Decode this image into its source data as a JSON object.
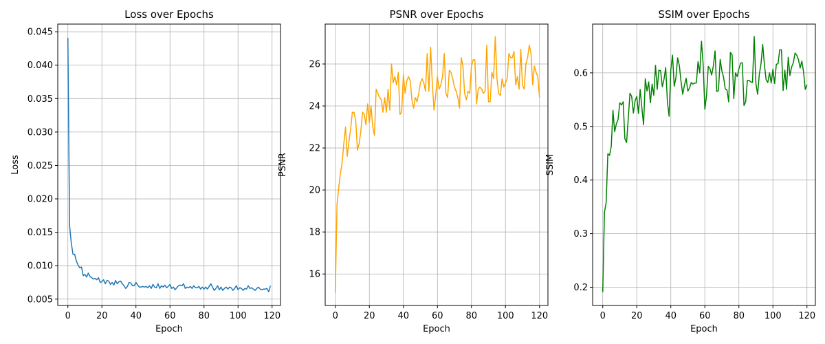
{
  "chart_data": [
    {
      "type": "line",
      "title": "Loss over Epochs",
      "xlabel": "Epoch",
      "ylabel": "Loss",
      "xlim": [
        -5.95,
        124.95
      ],
      "ylim": [
        0.00405,
        0.04615
      ],
      "grid": true,
      "color": "#1f77b4",
      "x_ticks": [
        0,
        20,
        40,
        60,
        80,
        100,
        120
      ],
      "x_tick_labels": [
        "0",
        "20",
        "40",
        "60",
        "80",
        "100",
        "120"
      ],
      "y_ticks": [
        0.005,
        0.01,
        0.015,
        0.02,
        0.025,
        0.03,
        0.035,
        0.04,
        0.045
      ],
      "y_tick_labels": [
        "0.005",
        "0.010",
        "0.015",
        "0.020",
        "0.025",
        "0.030",
        "0.035",
        "0.040",
        "0.045"
      ],
      "x_start": 0,
      "values": [
        0.0441,
        0.016,
        0.0134,
        0.0117,
        0.0117,
        0.0107,
        0.0101,
        0.0097,
        0.0098,
        0.0085,
        0.0087,
        0.0083,
        0.0089,
        0.0084,
        0.0082,
        0.008,
        0.0081,
        0.0079,
        0.0082,
        0.0075,
        0.0076,
        0.0079,
        0.0073,
        0.0078,
        0.0077,
        0.0072,
        0.0075,
        0.0071,
        0.0078,
        0.0073,
        0.0076,
        0.0077,
        0.0073,
        0.007,
        0.0066,
        0.0069,
        0.0075,
        0.0074,
        0.007,
        0.007,
        0.0075,
        0.0071,
        0.0068,
        0.0068,
        0.0069,
        0.0068,
        0.0069,
        0.0067,
        0.007,
        0.0066,
        0.0072,
        0.0068,
        0.0067,
        0.0073,
        0.0066,
        0.007,
        0.0068,
        0.0071,
        0.0067,
        0.0069,
        0.0072,
        0.0066,
        0.0068,
        0.0064,
        0.0067,
        0.007,
        0.0071,
        0.007,
        0.0073,
        0.0066,
        0.0068,
        0.0067,
        0.0069,
        0.0066,
        0.007,
        0.0067,
        0.0067,
        0.0069,
        0.0065,
        0.0068,
        0.0065,
        0.0068,
        0.0065,
        0.0069,
        0.0073,
        0.0068,
        0.0063,
        0.0066,
        0.007,
        0.0064,
        0.0068,
        0.0063,
        0.0066,
        0.0068,
        0.0065,
        0.0068,
        0.0067,
        0.0063,
        0.0066,
        0.007,
        0.0064,
        0.0067,
        0.0066,
        0.0063,
        0.0066,
        0.0065,
        0.007,
        0.0066,
        0.0067,
        0.0065,
        0.0063,
        0.0066,
        0.0068,
        0.0065,
        0.0064,
        0.0065,
        0.0065,
        0.0066,
        0.0061,
        0.007
      ]
    },
    {
      "type": "line",
      "title": "PSNR over Epochs",
      "xlabel": "Epoch",
      "ylabel": "PSNR",
      "xlim": [
        -5.95,
        124.95
      ],
      "ylim": [
        14.5,
        27.9
      ],
      "grid": true,
      "color": "#ffa500",
      "x_ticks": [
        0,
        20,
        40,
        60,
        80,
        100,
        120
      ],
      "x_tick_labels": [
        "0",
        "20",
        "40",
        "60",
        "80",
        "100",
        "120"
      ],
      "y_ticks": [
        16,
        18,
        20,
        22,
        24,
        26
      ],
      "y_tick_labels": [
        "16",
        "18",
        "20",
        "22",
        "24",
        "26"
      ],
      "x_start": 0,
      "values": [
        15.1,
        19.3,
        20.1,
        20.8,
        21.3,
        22.2,
        23.0,
        21.6,
        22.3,
        22.9,
        23.7,
        23.7,
        23.3,
        21.9,
        22.2,
        22.8,
        23.7,
        23.6,
        23.1,
        24.1,
        23.2,
        24.0,
        23.0,
        22.6,
        24.8,
        24.6,
        24.4,
        24.3,
        23.7,
        24.4,
        23.7,
        24.8,
        23.8,
        26.0,
        25.1,
        25.4,
        25.0,
        25.6,
        23.6,
        23.7,
        25.5,
        24.6,
        25.2,
        25.4,
        25.2,
        24.3,
        23.9,
        24.4,
        24.2,
        24.6,
        25.1,
        25.3,
        25.1,
        24.7,
        26.5,
        24.7,
        26.8,
        25.1,
        23.8,
        24.5,
        25.4,
        24.8,
        25.0,
        25.4,
        26.5,
        24.6,
        24.4,
        25.7,
        25.6,
        25.3,
        24.9,
        24.7,
        24.4,
        23.9,
        26.3,
        25.9,
        24.6,
        24.3,
        24.7,
        24.6,
        25.9,
        26.2,
        26.2,
        24.1,
        24.8,
        24.9,
        24.8,
        24.6,
        24.7,
        26.9,
        24.2,
        24.2,
        25.6,
        25.3,
        27.3,
        25.3,
        24.6,
        24.5,
        25.3,
        24.9,
        25.1,
        25.3,
        26.5,
        26.3,
        26.3,
        26.6,
        25.0,
        25.4,
        24.8,
        26.7,
        25.0,
        24.8,
        26.0,
        26.3,
        26.9,
        26.5,
        25.0,
        25.9,
        25.6,
        25.4,
        24.4
      ]
    },
    {
      "type": "line",
      "title": "SSIM over Epochs",
      "xlabel": "Epoch",
      "ylabel": "SSIM",
      "xlim": [
        -5.95,
        124.95
      ],
      "ylim": [
        0.166,
        0.691
      ],
      "grid": true,
      "color": "#008000",
      "x_ticks": [
        0,
        20,
        40,
        60,
        80,
        100,
        120
      ],
      "x_tick_labels": [
        "0",
        "20",
        "40",
        "60",
        "80",
        "100",
        "120"
      ],
      "y_ticks": [
        0.2,
        0.3,
        0.4,
        0.5,
        0.6
      ],
      "y_tick_labels": [
        "0.2",
        "0.3",
        "0.4",
        "0.5",
        "0.6"
      ],
      "x_start": 0,
      "values": [
        0.191,
        0.34,
        0.358,
        0.449,
        0.446,
        0.463,
        0.53,
        0.49,
        0.505,
        0.513,
        0.544,
        0.54,
        0.546,
        0.477,
        0.47,
        0.515,
        0.562,
        0.556,
        0.525,
        0.548,
        0.556,
        0.524,
        0.569,
        0.534,
        0.503,
        0.589,
        0.566,
        0.583,
        0.544,
        0.579,
        0.558,
        0.614,
        0.569,
        0.605,
        0.604,
        0.574,
        0.588,
        0.61,
        0.546,
        0.519,
        0.606,
        0.633,
        0.575,
        0.591,
        0.628,
        0.614,
        0.584,
        0.56,
        0.577,
        0.59,
        0.566,
        0.572,
        0.582,
        0.579,
        0.581,
        0.581,
        0.621,
        0.6,
        0.659,
        0.616,
        0.532,
        0.558,
        0.612,
        0.608,
        0.596,
        0.613,
        0.641,
        0.565,
        0.567,
        0.625,
        0.604,
        0.592,
        0.57,
        0.568,
        0.546,
        0.638,
        0.634,
        0.552,
        0.6,
        0.593,
        0.607,
        0.618,
        0.619,
        0.539,
        0.546,
        0.586,
        0.586,
        0.583,
        0.582,
        0.668,
        0.58,
        0.56,
        0.597,
        0.617,
        0.653,
        0.615,
        0.587,
        0.582,
        0.6,
        0.581,
        0.607,
        0.58,
        0.616,
        0.617,
        0.643,
        0.643,
        0.567,
        0.605,
        0.569,
        0.629,
        0.595,
        0.611,
        0.619,
        0.637,
        0.633,
        0.625,
        0.609,
        0.622,
        0.602,
        0.569,
        0.578
      ]
    }
  ]
}
